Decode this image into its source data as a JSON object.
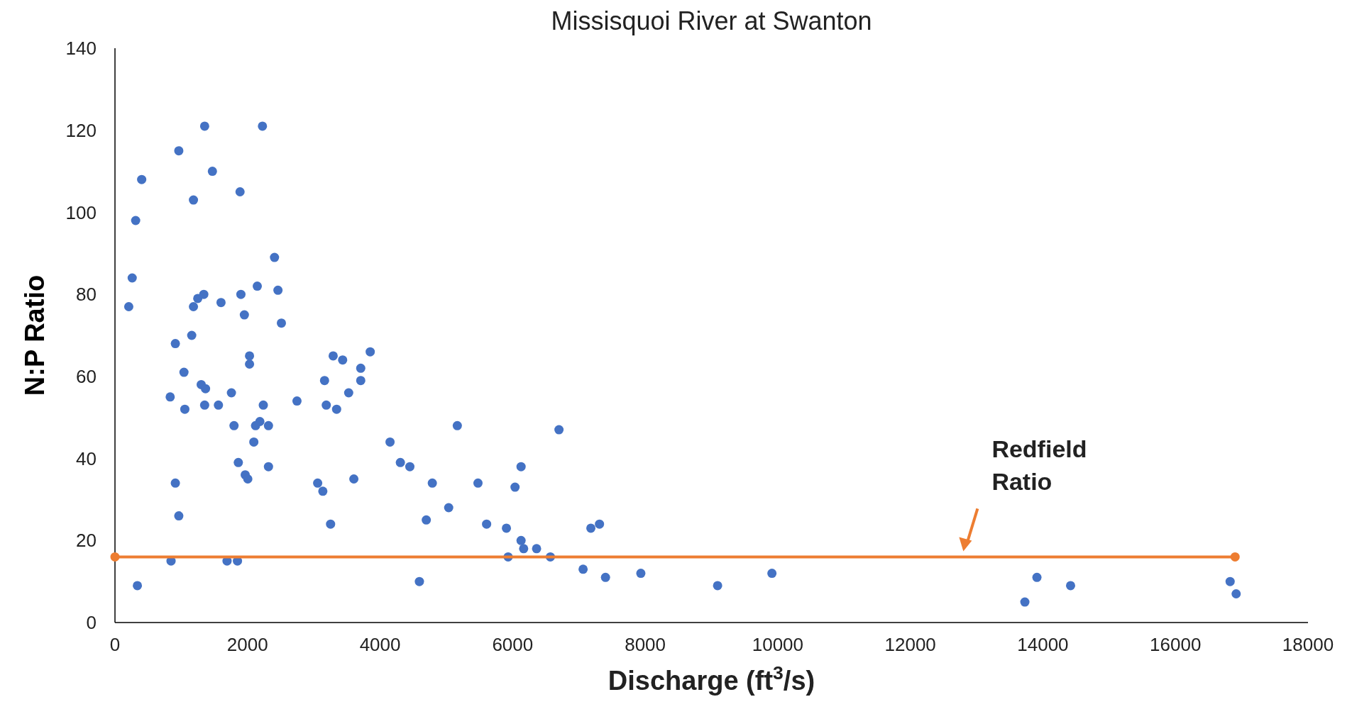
{
  "chart_data": {
    "type": "scatter",
    "title": "Missisquoi River at Swanton",
    "xlabel": "Discharge (ft$^{3}$/s)",
    "ylabel": "N:P Ratio",
    "xlim": [
      0,
      18000
    ],
    "xticks": [
      0,
      2000,
      4000,
      6000,
      8000,
      10000,
      12000,
      14000,
      16000,
      18000
    ],
    "ylim": [
      0,
      140
    ],
    "yticks": [
      0,
      20,
      40,
      60,
      80,
      100,
      120,
      140
    ],
    "grid": false,
    "marker": "circle",
    "series": [
      {
        "color": "#4472c4",
        "x": [
          208,
          260,
          312,
          403,
          338,
          833,
          846,
          911,
          911,
          963,
          963,
          1041,
          1054,
          1158,
          1184,
          1184,
          1249,
          1301,
          1340,
          1353,
          1366,
          1353,
          1470,
          1561,
          1600,
          1691,
          1757,
          1796,
          1861,
          1848,
          1887,
          1900,
          1952,
          1965,
          2004,
          2030,
          2030,
          2095,
          2121,
          2147,
          2186,
          2238,
          2225,
          2316,
          2316,
          2407,
          2459,
          2511,
          2746,
          3058,
          3136,
          3162,
          3188,
          3253,
          3292,
          3344,
          3435,
          3526,
          3604,
          3708,
          3708,
          3851,
          4150,
          4306,
          4449,
          4593,
          4697,
          4788,
          5035,
          5165,
          5477,
          5607,
          5906,
          5932,
          6036,
          6127,
          6127,
          6166,
          6361,
          6569,
          6699,
          7063,
          7180,
          7310,
          7401,
          7934,
          9092,
          9912,
          13728,
          13910,
          14418,
          16825,
          16916
        ],
        "values": [
          77,
          84,
          98,
          108,
          9,
          55,
          15,
          68,
          34,
          115,
          26,
          61,
          52,
          70,
          77,
          103,
          79,
          58,
          80,
          121,
          57,
          53,
          110,
          53,
          78,
          15,
          56,
          48,
          39,
          15,
          105,
          80,
          75,
          36,
          35,
          65,
          63,
          44,
          48,
          82,
          49,
          53,
          121,
          48,
          38,
          89,
          81,
          73,
          54,
          34,
          32,
          59,
          53,
          24,
          65,
          52,
          64,
          56,
          35,
          62,
          59,
          66,
          44,
          39,
          38,
          10,
          25,
          34,
          28,
          48,
          34,
          24,
          23,
          16,
          33,
          20,
          38,
          18,
          18,
          16,
          47,
          13,
          23,
          24,
          11,
          12,
          9,
          12,
          5,
          11,
          9,
          10,
          7
        ]
      },
      {
        "type": "line",
        "color": "#ed7d31",
        "x": [
          0,
          16900
        ],
        "values": [
          16,
          16
        ],
        "marker": "circle"
      }
    ],
    "annotations": [
      {
        "text": "Redfield Ratio",
        "x": 12800,
        "y": 16
      }
    ]
  }
}
